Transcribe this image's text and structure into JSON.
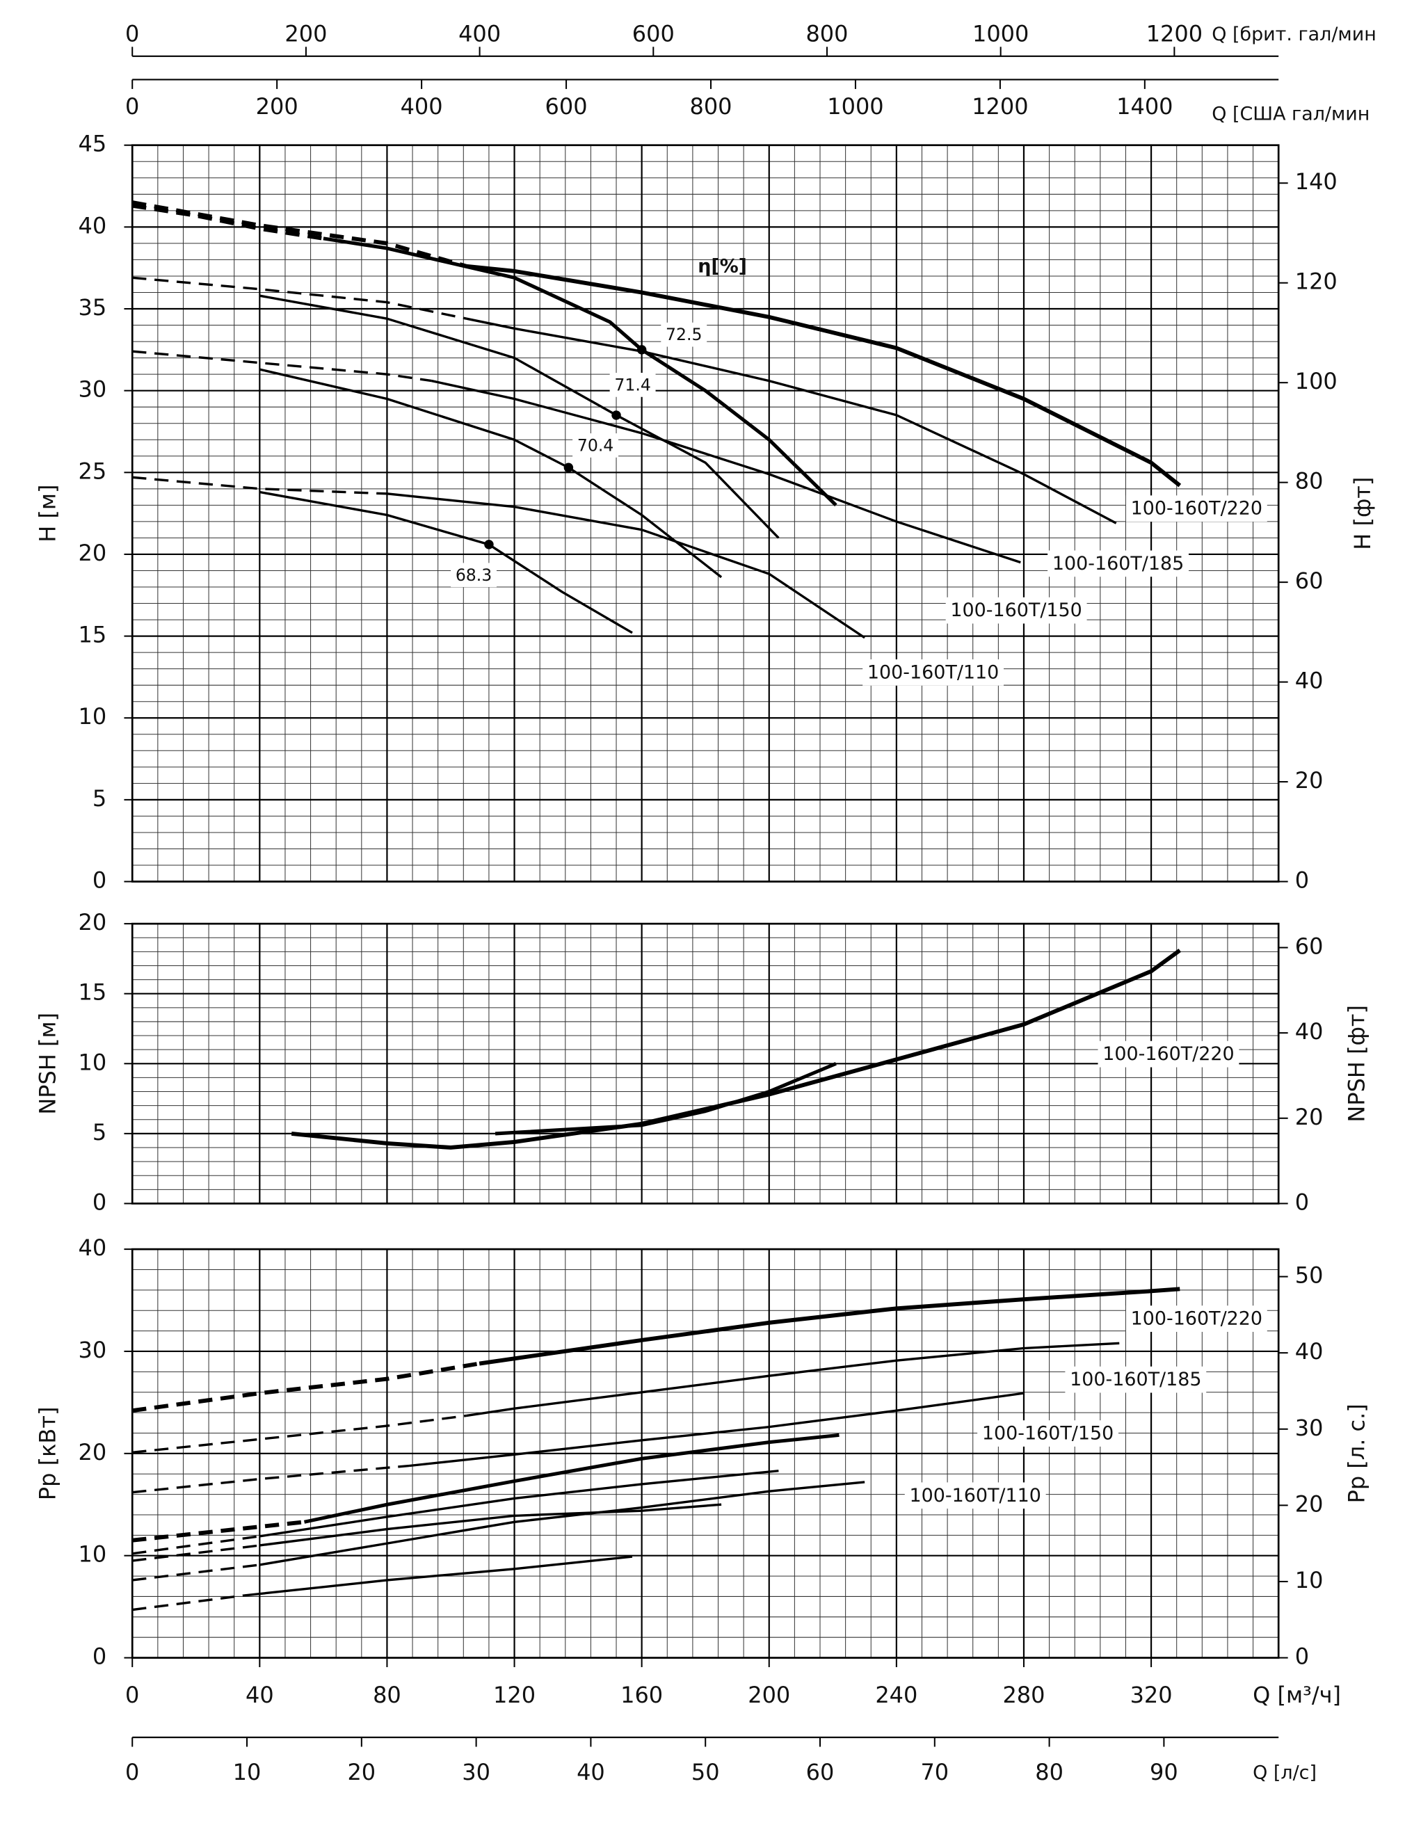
{
  "chart_data": [
    {
      "type": "line",
      "ylabel": "H [м]",
      "y2label": "H [фт]",
      "annotation": "η[%]",
      "xlim": [
        0,
        360
      ],
      "xticks": [
        0,
        40,
        80,
        120,
        160,
        200,
        240,
        280,
        320
      ],
      "xtick_labels": false,
      "minor_xstep": 8,
      "ylim": [
        0,
        45
      ],
      "yticks": [
        0,
        5,
        10,
        15,
        20,
        25,
        30,
        35,
        40,
        45
      ],
      "minor_ystep": 1,
      "y2lim": [
        0,
        147.6
      ],
      "y2ticks": [
        0,
        20,
        40,
        60,
        80,
        100,
        120,
        140
      ],
      "grid": true,
      "secondary_x": [
        {
          "label": "Q [брит. гал/мин",
          "xlim": [
            0,
            1320
          ],
          "xticks": [
            0,
            200,
            400,
            600,
            800,
            1000,
            1200
          ]
        },
        {
          "label": "Q [США гал/мин",
          "xlim": [
            0,
            1585
          ],
          "xticks": [
            0,
            200,
            400,
            600,
            800,
            1000,
            1200,
            1400
          ]
        }
      ],
      "series": [
        {
          "x": [
            0,
            20,
            40,
            60
          ],
          "values": [
            41.3,
            40.7,
            39.9,
            39.3
          ],
          "linestyle": "dashed",
          "linewidth": 3.5,
          "color": "#000000"
        },
        {
          "x": [
            60,
            80,
            120,
            150,
            160,
            180,
            200,
            221
          ],
          "values": [
            39.3,
            38.7,
            36.9,
            34.2,
            32.5,
            30.0,
            27.0,
            23.0
          ],
          "linestyle": "solid",
          "linewidth": 3,
          "color": "#000000"
        },
        {
          "x": [
            0,
            40,
            80,
            105
          ],
          "values": [
            41.5,
            40.1,
            39.0,
            37.6
          ],
          "linestyle": "dashed",
          "linewidth": 3.5,
          "color": "#000000"
        },
        {
          "name": "100-160T/220",
          "x": [
            105,
            120,
            160,
            200,
            240,
            280,
            320,
            329
          ],
          "values": [
            37.6,
            37.3,
            36.0,
            34.5,
            32.6,
            29.5,
            25.6,
            24.2
          ],
          "linestyle": "solid",
          "linewidth": 3.5,
          "color": "#000000"
        },
        {
          "x": [
            0,
            40,
            80,
            105
          ],
          "values": [
            36.9,
            36.2,
            35.4,
            34.4
          ],
          "linestyle": "dashed",
          "linewidth": 2,
          "color": "#000000"
        },
        {
          "name": "100-160T/185",
          "x": [
            105,
            120,
            160,
            200,
            240,
            280,
            309
          ],
          "values": [
            34.4,
            33.8,
            32.4,
            30.6,
            28.5,
            24.9,
            21.9
          ],
          "linestyle": "solid",
          "linewidth": 2,
          "color": "#000000"
        },
        {
          "x": [
            0,
            40,
            80,
            94
          ],
          "values": [
            32.4,
            31.7,
            31.0,
            30.6
          ],
          "linestyle": "dashed",
          "linewidth": 2,
          "color": "#000000"
        },
        {
          "name": "100-160T/150",
          "x": [
            94,
            120,
            160,
            200,
            240,
            279
          ],
          "values": [
            30.6,
            29.5,
            27.4,
            24.9,
            22.0,
            19.5
          ],
          "linestyle": "solid",
          "linewidth": 2,
          "color": "#000000"
        },
        {
          "x": [
            0,
            40,
            80
          ],
          "values": [
            24.7,
            24.0,
            23.7
          ],
          "linestyle": "dashed",
          "linewidth": 2,
          "color": "#000000"
        },
        {
          "name": "100-160T/110",
          "x": [
            80,
            120,
            160,
            200,
            230
          ],
          "values": [
            23.7,
            22.9,
            21.5,
            18.8,
            14.9
          ],
          "linestyle": "solid",
          "linewidth": 2,
          "color": "#000000"
        },
        {
          "x": [
            40,
            80,
            120,
            152,
            180,
            203
          ],
          "values": [
            35.8,
            34.4,
            32.0,
            28.5,
            25.6,
            21.0
          ],
          "linestyle": "solid",
          "linewidth": 2,
          "color": "#000000"
        },
        {
          "x": [
            40,
            80,
            120,
            137,
            160,
            185
          ],
          "values": [
            31.3,
            29.5,
            27.0,
            25.3,
            22.4,
            18.6
          ],
          "linestyle": "solid",
          "linewidth": 2,
          "color": "#000000"
        },
        {
          "x": [
            40,
            80,
            112,
            135,
            157
          ],
          "values": [
            23.8,
            22.4,
            20.6,
            17.7,
            15.2
          ],
          "linestyle": "solid",
          "linewidth": 2,
          "color": "#000000"
        }
      ],
      "efficiency_points": {
        "x": [
          160,
          152,
          137,
          112
        ],
        "values": [
          32.5,
          28.5,
          25.3,
          20.6
        ],
        "labels": [
          72.5,
          71.4,
          70.4,
          68.3
        ]
      }
    },
    {
      "type": "line",
      "ylabel": "NPSH [м]",
      "y2label": "NPSH [фт]",
      "xlim": [
        0,
        360
      ],
      "xticks": [
        0,
        40,
        80,
        120,
        160,
        200,
        240,
        280,
        320
      ],
      "xtick_labels": false,
      "minor_xstep": 8,
      "ylim": [
        0,
        20
      ],
      "yticks": [
        0,
        5,
        10,
        15,
        20
      ],
      "minor_ystep": 1,
      "y2lim": [
        0,
        65.6
      ],
      "y2ticks": [
        0,
        20,
        40,
        60
      ],
      "grid": true,
      "series": [
        {
          "name": "100-160T/220",
          "x": [
            50,
            80,
            100,
            120,
            160,
            200,
            240,
            280,
            320,
            329
          ],
          "values": [
            5.0,
            4.3,
            4.0,
            4.4,
            5.7,
            7.8,
            10.3,
            12.8,
            16.6,
            18.1
          ],
          "linestyle": "solid",
          "linewidth": 3.5,
          "color": "#000000"
        },
        {
          "x": [
            114,
            160,
            180,
            200,
            221
          ],
          "values": [
            5.0,
            5.6,
            6.6,
            8.0,
            10.0
          ],
          "linestyle": "solid",
          "linewidth": 3,
          "color": "#000000"
        }
      ]
    },
    {
      "type": "line",
      "ylabel": "Pp [кВт]",
      "y2label": "Pp [л. с.]",
      "xlabel": "Q [м³/ч]",
      "xlim": [
        0,
        360
      ],
      "xticks": [
        0,
        40,
        80,
        120,
        160,
        200,
        240,
        280,
        320
      ],
      "xtick_labels": true,
      "minor_xstep": 8,
      "ylim": [
        0,
        40
      ],
      "yticks": [
        0,
        10,
        20,
        30,
        40
      ],
      "minor_ystep": 2,
      "y2lim": [
        0,
        53.6
      ],
      "y2ticks": [
        0,
        10,
        20,
        30,
        40,
        50
      ],
      "grid": true,
      "secondary_x": [
        {
          "label": "Q [л/с]",
          "xlim": [
            0,
            100
          ],
          "xticks": [
            0,
            10,
            20,
            30,
            40,
            50,
            60,
            70,
            80,
            90
          ]
        }
      ],
      "series": [
        {
          "x": [
            0,
            40,
            80,
            109
          ],
          "values": [
            24.2,
            25.9,
            27.3,
            28.8
          ],
          "linestyle": "dashed",
          "linewidth": 3.5,
          "color": "#000000"
        },
        {
          "name": "100-160T/220",
          "x": [
            109,
            120,
            160,
            200,
            240,
            280,
            320,
            329
          ],
          "values": [
            28.8,
            29.3,
            31.1,
            32.8,
            34.2,
            35.1,
            35.9,
            36.1
          ],
          "linestyle": "solid",
          "linewidth": 3.5,
          "color": "#000000"
        },
        {
          "x": [
            0,
            40,
            80,
            105
          ],
          "values": [
            20.1,
            21.4,
            22.7,
            23.7
          ],
          "linestyle": "dashed",
          "linewidth": 2,
          "color": "#000000"
        },
        {
          "name": "100-160T/185",
          "x": [
            105,
            120,
            160,
            200,
            240,
            280,
            310
          ],
          "values": [
            23.7,
            24.4,
            26.0,
            27.6,
            29.1,
            30.3,
            30.8
          ],
          "linestyle": "solid",
          "linewidth": 2,
          "color": "#000000"
        },
        {
          "x": [
            0,
            40,
            87
          ],
          "values": [
            16.2,
            17.5,
            18.8
          ],
          "linestyle": "dashed",
          "linewidth": 2,
          "color": "#000000"
        },
        {
          "name": "100-160T/150",
          "x": [
            87,
            120,
            160,
            200,
            240,
            280
          ],
          "values": [
            18.8,
            19.9,
            21.3,
            22.6,
            24.2,
            25.9
          ],
          "linestyle": "solid",
          "linewidth": 2,
          "color": "#000000"
        },
        {
          "x": [
            0,
            40
          ],
          "values": [
            7.6,
            9.1
          ],
          "linestyle": "dashed",
          "linewidth": 2,
          "color": "#000000"
        },
        {
          "name": "100-160T/110",
          "x": [
            40,
            80,
            120,
            160,
            200,
            230
          ],
          "values": [
            9.1,
            11.2,
            13.3,
            14.7,
            16.3,
            17.2
          ],
          "linestyle": "solid",
          "linewidth": 2,
          "color": "#000000"
        },
        {
          "x": [
            0,
            35
          ],
          "values": [
            4.7,
            6.1
          ],
          "linestyle": "dashed",
          "linewidth": 2,
          "color": "#000000"
        },
        {
          "x": [
            35,
            80,
            120,
            157
          ],
          "values": [
            6.1,
            7.6,
            8.7,
            9.9
          ],
          "linestyle": "solid",
          "linewidth": 2,
          "color": "#000000"
        },
        {
          "x": [
            0,
            54
          ],
          "values": [
            11.5,
            13.3
          ],
          "linestyle": "dashed",
          "linewidth": 3.5,
          "color": "#000000"
        },
        {
          "x": [
            54,
            80,
            120,
            160,
            200,
            222
          ],
          "values": [
            13.3,
            15.0,
            17.3,
            19.5,
            21.1,
            21.8
          ],
          "linestyle": "solid",
          "linewidth": 3,
          "color": "#000000"
        },
        {
          "x": [
            0,
            40
          ],
          "values": [
            10.2,
            11.9
          ],
          "linestyle": "dashed",
          "linewidth": 2,
          "color": "#000000"
        },
        {
          "x": [
            40,
            80,
            120,
            160,
            203
          ],
          "values": [
            11.9,
            13.8,
            15.6,
            17.0,
            18.3
          ],
          "linestyle": "solid",
          "linewidth": 2,
          "color": "#000000"
        },
        {
          "x": [
            0,
            40
          ],
          "values": [
            9.5,
            11.0
          ],
          "linestyle": "dashed",
          "linewidth": 2,
          "color": "#000000"
        },
        {
          "x": [
            40,
            80,
            120,
            160,
            185
          ],
          "values": [
            11.0,
            12.6,
            13.9,
            14.4,
            15.0
          ],
          "linestyle": "solid",
          "linewidth": 2,
          "color": "#000000"
        }
      ]
    }
  ]
}
